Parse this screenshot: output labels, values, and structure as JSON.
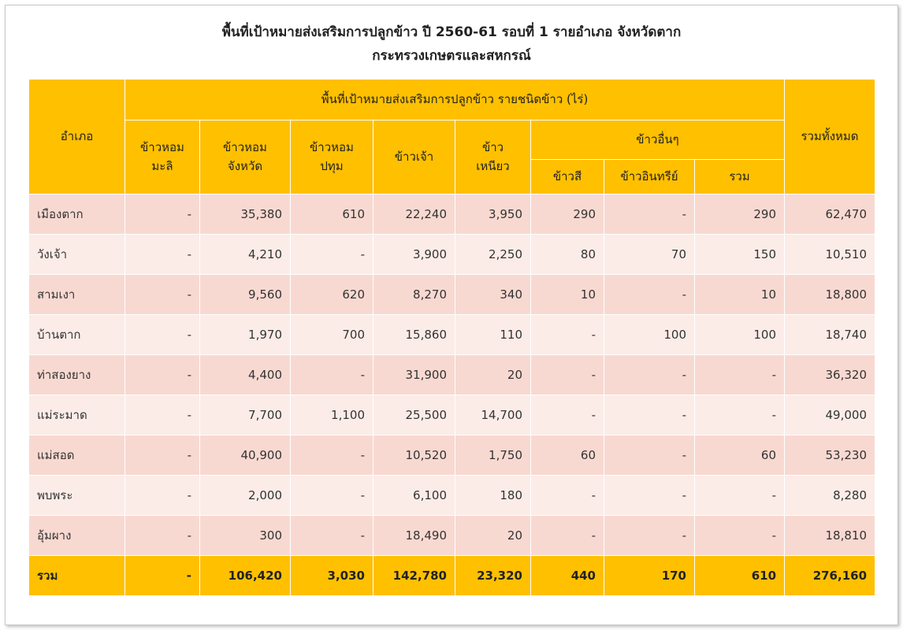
{
  "title": {
    "line1": "พื้นที่เป้าหมายส่งเสริมการปลูกข้าว ปี 2560-61  รอบที่ 1 รายอำเภอ จังหวัดตาก",
    "line2": "กระทรวงเกษตรและสหกรณ์"
  },
  "header": {
    "district": "อำเภอ",
    "group": "พื้นที่เป้าหมายส่งเสริมการปลูกข้าว รายชนิดข้าว (ไร่)",
    "total": "รวมทั้งหมด",
    "hom_mali": [
      "ข้าวหอม",
      "มะลิ"
    ],
    "hom_province": [
      "ข้าวหอม",
      "จังหวัด"
    ],
    "hom_pathum": [
      "ข้าวหอม",
      "ปทุม"
    ],
    "jao": "ข้าวเจ้า",
    "niao": [
      "ข้าว",
      "เหนียว"
    ],
    "other": "ข้าวอื่นๆ",
    "color": "ข้าวสี",
    "organic": "ข้าวอินทรีย์",
    "other_total": "รวม"
  },
  "rows": [
    {
      "name": "เมืองตาก",
      "v": [
        "-",
        "35,380",
        "610",
        "22,240",
        "3,950",
        "290",
        "-",
        "290",
        "62,470"
      ]
    },
    {
      "name": "วังเจ้า",
      "v": [
        "-",
        "4,210",
        "-",
        "3,900",
        "2,250",
        "80",
        "70",
        "150",
        "10,510"
      ]
    },
    {
      "name": "สามเงา",
      "v": [
        "-",
        "9,560",
        "620",
        "8,270",
        "340",
        "10",
        "-",
        "10",
        "18,800"
      ]
    },
    {
      "name": "บ้านตาก",
      "v": [
        "-",
        "1,970",
        "700",
        "15,860",
        "110",
        "-",
        "100",
        "100",
        "18,740"
      ]
    },
    {
      "name": "ท่าสองยาง",
      "v": [
        "-",
        "4,400",
        "-",
        "31,900",
        "20",
        "-",
        "-",
        "-",
        "36,320"
      ]
    },
    {
      "name": "แม่ระมาด",
      "v": [
        "-",
        "7,700",
        "1,100",
        "25,500",
        "14,700",
        "-",
        "-",
        "-",
        "49,000"
      ]
    },
    {
      "name": "แม่สอด",
      "v": [
        "-",
        "40,900",
        "-",
        "10,520",
        "1,750",
        "60",
        "-",
        "60",
        "53,230"
      ]
    },
    {
      "name": "พบพระ",
      "v": [
        "-",
        "2,000",
        "-",
        "6,100",
        "180",
        "-",
        "-",
        "-",
        "8,280"
      ]
    },
    {
      "name": "อุ้มผาง",
      "v": [
        "-",
        "300",
        "-",
        "18,490",
        "20",
        "-",
        "-",
        "-",
        "18,810"
      ]
    }
  ],
  "total_row": {
    "name": "รวม",
    "v": [
      "-",
      "106,420",
      "3,030",
      "142,780",
      "23,320",
      "440",
      "170",
      "610",
      "276,160"
    ]
  },
  "colors": {
    "header": "#FFC000",
    "row_odd": "#F8D9D1",
    "row_even": "#FCECE7"
  }
}
